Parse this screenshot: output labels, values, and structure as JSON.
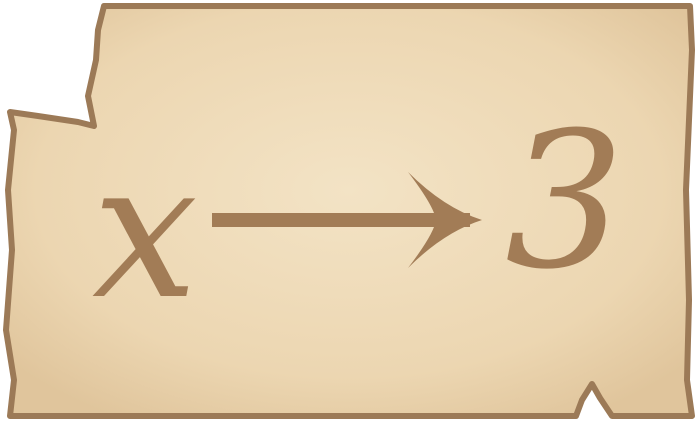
{
  "card": {
    "variable": "x",
    "arrow_icon": "right-arrow-icon",
    "value": "3"
  },
  "colors": {
    "parchment_light": "#f2e1c1",
    "parchment_dark": "#e1c89f",
    "border": "#9c7a57",
    "ink": "#a27c56"
  }
}
